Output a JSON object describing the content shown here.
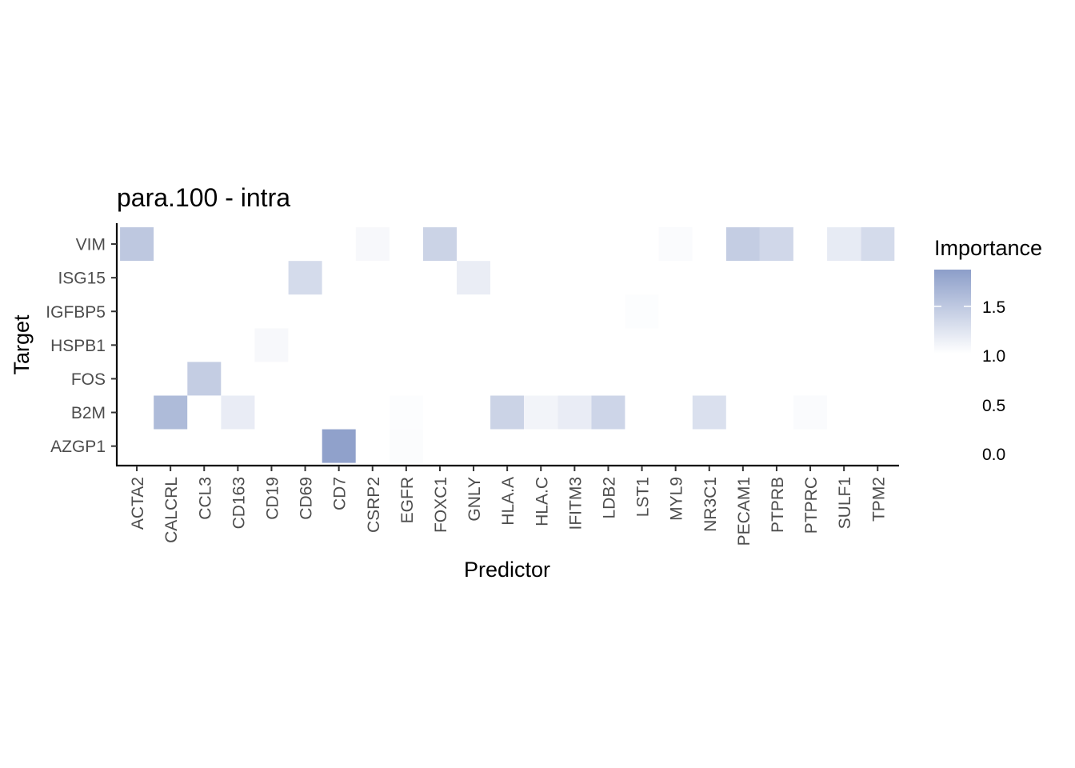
{
  "chart_data": {
    "type": "heatmap",
    "title": "para.100 - intra",
    "xlabel": "Predictor",
    "ylabel": "Target",
    "x_categories": [
      "ACTA2",
      "CALCRL",
      "CCL3",
      "CD163",
      "CD19",
      "CD69",
      "CD7",
      "CSRP2",
      "EGFR",
      "FOXC1",
      "GNLY",
      "HLA.A",
      "HLA.C",
      "IFITM3",
      "LDB2",
      "LST1",
      "MYL9",
      "NR3C1",
      "PECAM1",
      "PTPRB",
      "PTPRC",
      "SULF1",
      "TPM2"
    ],
    "y_categories": [
      "VIM",
      "ISG15",
      "IGFBP5",
      "HSPB1",
      "FOS",
      "B2M",
      "AZGP1"
    ],
    "cells": [
      {
        "x": "ACTA2",
        "y": "VIM",
        "value": 1.5
      },
      {
        "x": "CSRP2",
        "y": "VIM",
        "value": 1.06
      },
      {
        "x": "FOXC1",
        "y": "VIM",
        "value": 1.4
      },
      {
        "x": "MYL9",
        "y": "VIM",
        "value": 1.04
      },
      {
        "x": "PECAM1",
        "y": "VIM",
        "value": 1.45
      },
      {
        "x": "PTPRB",
        "y": "VIM",
        "value": 1.36
      },
      {
        "x": "SULF1",
        "y": "VIM",
        "value": 1.18
      },
      {
        "x": "TPM2",
        "y": "VIM",
        "value": 1.33
      },
      {
        "x": "CD69",
        "y": "ISG15",
        "value": 1.33
      },
      {
        "x": "GNLY",
        "y": "ISG15",
        "value": 1.16
      },
      {
        "x": "LST1",
        "y": "IGFBP5",
        "value": 1.02
      },
      {
        "x": "CD19",
        "y": "HSPB1",
        "value": 1.06
      },
      {
        "x": "CCL3",
        "y": "FOS",
        "value": 1.45
      },
      {
        "x": "CALCRL",
        "y": "B2M",
        "value": 1.62
      },
      {
        "x": "CD163",
        "y": "B2M",
        "value": 1.17
      },
      {
        "x": "EGFR",
        "y": "B2M",
        "value": 1.02
      },
      {
        "x": "HLA.A",
        "y": "B2M",
        "value": 1.4
      },
      {
        "x": "HLA.C",
        "y": "B2M",
        "value": 1.1
      },
      {
        "x": "IFITM3",
        "y": "B2M",
        "value": 1.17
      },
      {
        "x": "LDB2",
        "y": "B2M",
        "value": 1.38
      },
      {
        "x": "NR3C1",
        "y": "B2M",
        "value": 1.28
      },
      {
        "x": "PTPRC",
        "y": "B2M",
        "value": 1.04
      },
      {
        "x": "CD7",
        "y": "AZGP1",
        "value": 1.85
      },
      {
        "x": "EGFR",
        "y": "AZGP1",
        "value": 1.03
      }
    ],
    "legend": {
      "title": "Importance",
      "placement": "right",
      "labels": [
        "1.5",
        "1.0",
        "0.5",
        "0.0"
      ],
      "low_color": "#ffffff",
      "high_color": "#8c9ec9",
      "min": 1.0,
      "max": 1.88
    },
    "grid": false
  }
}
